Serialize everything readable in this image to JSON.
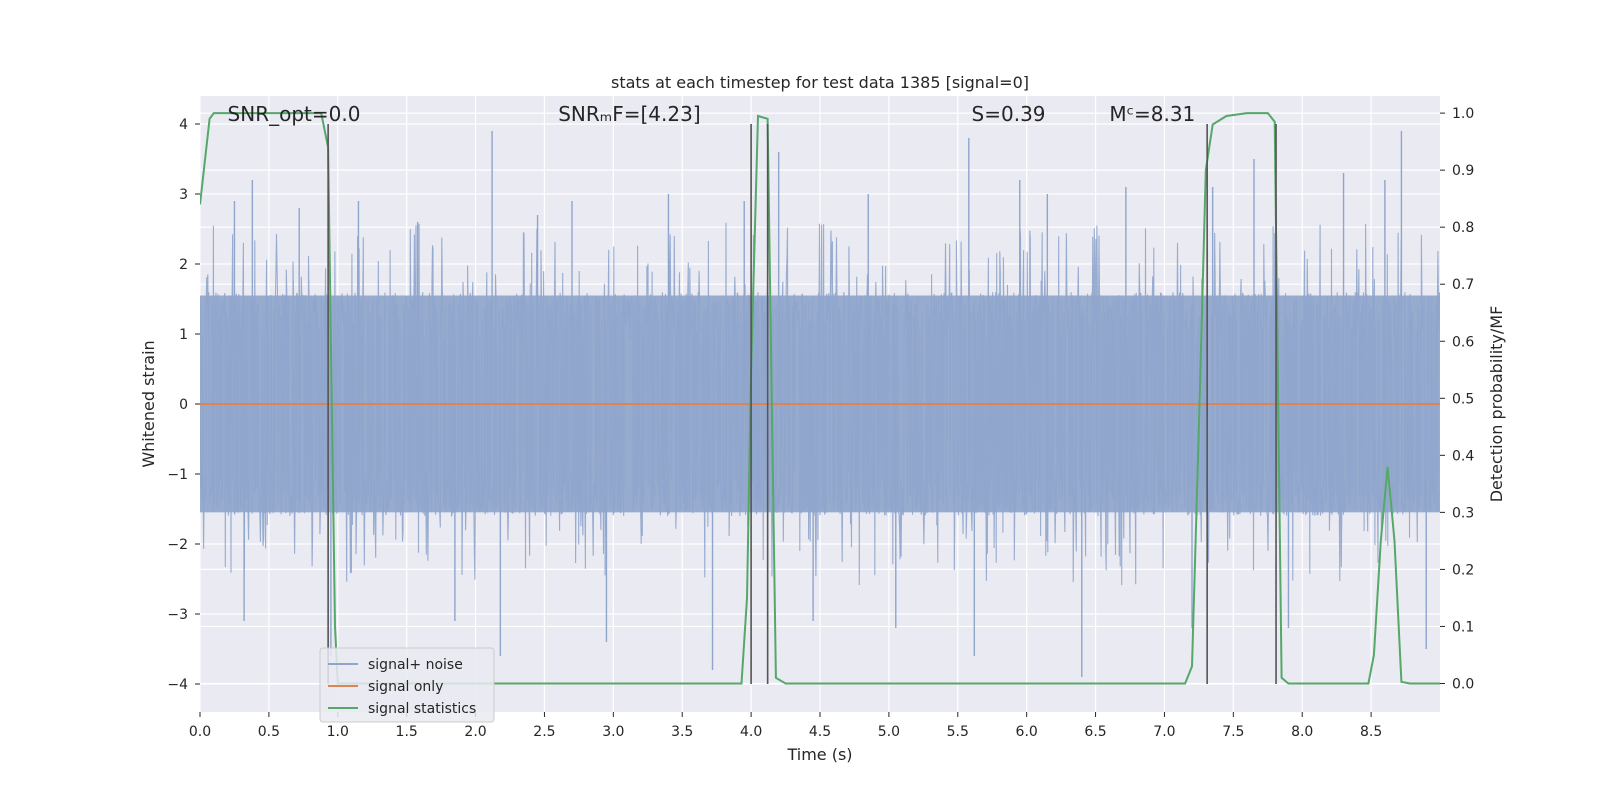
{
  "chart_data": {
    "type": "line",
    "title": "stats at each timestep for test data 1385 [signal=0]",
    "xlabel": "Time (s)",
    "ylabel": "Whitened strain",
    "ylabel_right": "Detection probability/MF",
    "xlim": [
      0.0,
      9.0
    ],
    "ylim": [
      -4.4,
      4.4
    ],
    "ylim_right": [
      -0.05,
      1.03
    ],
    "x_ticks": [
      0.0,
      0.5,
      1.0,
      1.5,
      2.0,
      2.5,
      3.0,
      3.5,
      4.0,
      4.5,
      5.0,
      5.5,
      6.0,
      6.5,
      7.0,
      7.5,
      8.0,
      8.5
    ],
    "x_tick_labels": [
      "0.0",
      "0.5",
      "1.0",
      "1.5",
      "2.0",
      "2.5",
      "3.0",
      "3.5",
      "4.0",
      "4.5",
      "5.0",
      "5.5",
      "6.0",
      "6.5",
      "7.0",
      "7.5",
      "8.0",
      "8.5"
    ],
    "y_ticks": [
      4,
      3,
      2,
      1,
      0,
      -1,
      -2,
      -3,
      -4
    ],
    "y_tick_labels": [
      "4",
      "3",
      "2",
      "1",
      "0",
      "−1",
      "−2",
      "−3",
      "−4"
    ],
    "y2_ticks": [
      1.0,
      0.9,
      0.8,
      0.7,
      0.6,
      0.5,
      0.4,
      0.3,
      0.2,
      0.1,
      0.0
    ],
    "y2_tick_labels": [
      "1.0",
      "0.9",
      "0.8",
      "0.7",
      "0.6",
      "0.5",
      "0.4",
      "0.3",
      "0.2",
      "0.1",
      "0.0"
    ],
    "grid": true,
    "legend_position": "lower-left",
    "annotations": [
      {
        "text": "SNR_opt=0.0",
        "x": 0.2,
        "y": 4.1
      },
      {
        "text": "SNRₘF=[4.23]",
        "x": 2.6,
        "y": 4.1
      },
      {
        "text": "S=0.39",
        "x": 5.6,
        "y": 4.1
      },
      {
        "text": "Mᶜ=8.31",
        "x": 6.6,
        "y": 4.1
      }
    ],
    "series": [
      {
        "name": "signal+ noise",
        "color": "#8fa5cc",
        "axis": "left",
        "kind": "noise",
        "typical_abs_max": 1.6,
        "spikes": [
          {
            "x": 0.25,
            "y": 2.9
          },
          {
            "x": 0.32,
            "y": -3.1
          },
          {
            "x": 0.38,
            "y": 3.2
          },
          {
            "x": 0.72,
            "y": 2.8
          },
          {
            "x": 0.95,
            "y": -3.6
          },
          {
            "x": 1.15,
            "y": 2.9
          },
          {
            "x": 1.58,
            "y": 2.6
          },
          {
            "x": 1.85,
            "y": -3.1
          },
          {
            "x": 2.12,
            "y": 3.9
          },
          {
            "x": 2.18,
            "y": -3.6
          },
          {
            "x": 2.45,
            "y": 2.7
          },
          {
            "x": 2.7,
            "y": 2.9
          },
          {
            "x": 2.95,
            "y": -3.4
          },
          {
            "x": 3.4,
            "y": 3.0
          },
          {
            "x": 3.72,
            "y": -3.8
          },
          {
            "x": 3.95,
            "y": 2.9
          },
          {
            "x": 4.2,
            "y": 3.6
          },
          {
            "x": 4.45,
            "y": -3.1
          },
          {
            "x": 4.85,
            "y": 3.0
          },
          {
            "x": 5.05,
            "y": -3.2
          },
          {
            "x": 5.58,
            "y": 3.8
          },
          {
            "x": 5.62,
            "y": -3.6
          },
          {
            "x": 5.95,
            "y": 3.2
          },
          {
            "x": 6.15,
            "y": 3.0
          },
          {
            "x": 6.4,
            "y": -3.9
          },
          {
            "x": 6.72,
            "y": 3.1
          },
          {
            "x": 7.2,
            "y": -3.2
          },
          {
            "x": 7.35,
            "y": 3.1
          },
          {
            "x": 7.65,
            "y": 3.5
          },
          {
            "x": 7.9,
            "y": -3.2
          },
          {
            "x": 8.3,
            "y": 3.3
          },
          {
            "x": 8.6,
            "y": 3.2
          },
          {
            "x": 8.72,
            "y": 3.9
          },
          {
            "x": 8.9,
            "y": -3.5
          }
        ]
      },
      {
        "name": "signal only",
        "color": "#dd8452",
        "axis": "left",
        "x": [
          0.0,
          9.0
        ],
        "y": [
          0.0,
          0.0
        ]
      },
      {
        "name": "signal statistics",
        "color": "#55a868",
        "axis": "right",
        "x": [
          0.0,
          0.07,
          0.1,
          0.15,
          0.5,
          0.88,
          0.93,
          0.98,
          1.0,
          3.93,
          3.97,
          4.0,
          4.05,
          4.12,
          4.18,
          4.25,
          4.3,
          7.15,
          7.2,
          7.25,
          7.3,
          7.35,
          7.45,
          7.6,
          7.75,
          7.8,
          7.85,
          7.9,
          7.95,
          8.48,
          8.52,
          8.57,
          8.62,
          8.67,
          8.72,
          8.78,
          9.0
        ],
        "y": [
          0.84,
          0.99,
          1.0,
          1.0,
          1.0,
          1.0,
          0.94,
          0.1,
          0.0,
          0.0,
          0.15,
          0.55,
          0.995,
          0.99,
          0.01,
          0.0,
          0.0,
          0.0,
          0.03,
          0.45,
          0.9,
          0.98,
          0.995,
          1.0,
          1.0,
          0.985,
          0.01,
          0.0,
          0.0,
          0.0,
          0.05,
          0.25,
          0.38,
          0.25,
          0.003,
          0.0,
          0.0
        ]
      }
    ],
    "vertical_lines": [
      0.93,
      4.0,
      4.12,
      7.31,
      7.81
    ],
    "vertical_line_range": [
      -4.0,
      4.0
    ],
    "vertical_line_color": "#555555"
  }
}
